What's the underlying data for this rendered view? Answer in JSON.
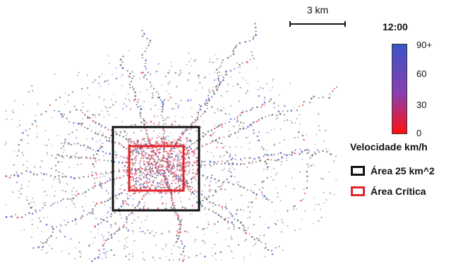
{
  "scale_bar": {
    "label": "3 km"
  },
  "time_label": "12:00",
  "colorbar": {
    "title": "Velocidade km/h",
    "ticks": [
      "90+",
      "60",
      "30",
      "0"
    ],
    "color_high": "#3a55c8",
    "color_mid": "#8a3fb0",
    "color_low": "#ff1010"
  },
  "legend": {
    "black_area": {
      "label": "Área 25 km^2",
      "color": "#111111"
    },
    "red_area": {
      "label": "Área Crítica",
      "color": "#e0262b"
    }
  },
  "point_colors": {
    "slow": "#e0304a",
    "fast": "#3d53c0",
    "neutral": "#666666"
  }
}
